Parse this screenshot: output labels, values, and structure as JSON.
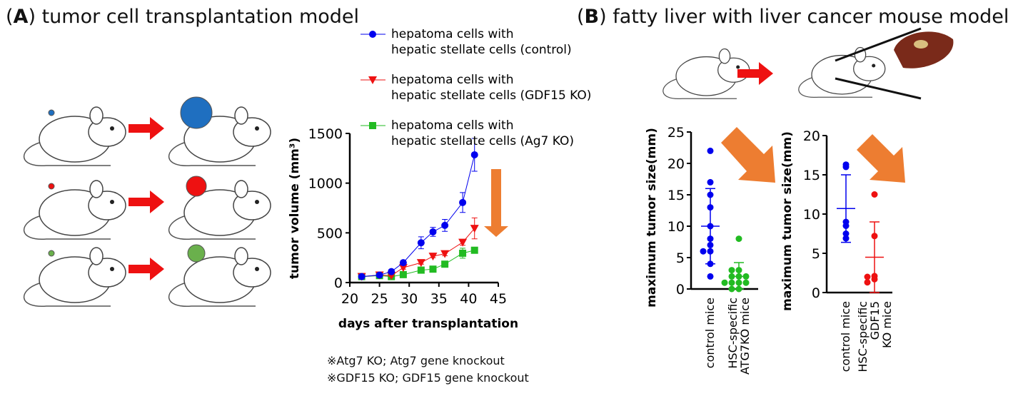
{
  "panel_a": {
    "letter": "A",
    "title": "tumor cell transplantation model",
    "notes": [
      "※Atg7 KO; Atg7 gene knockout",
      "※GDF15 KO; GDF15 gene knockout"
    ],
    "mouse_tumor_colors": [
      "#1f6fc0",
      "#ee1111",
      "#6ab04c"
    ]
  },
  "panel_b": {
    "letter": "B",
    "title": "fatty liver with liver cancer mouse model"
  },
  "colors": {
    "arrow_red": "#ee1111",
    "arrow_orange": "#ed7d31"
  },
  "chart_data": [
    {
      "type": "line",
      "xlabel": "days after transplantation",
      "ylabel": "tumor volume (mm³)",
      "xlim": [
        20,
        45
      ],
      "ylim": [
        0,
        1500
      ],
      "xticks": [
        20,
        25,
        30,
        35,
        40,
        45
      ],
      "yticks": [
        0,
        500,
        1000,
        1500
      ],
      "legend": "top",
      "x": [
        22,
        25,
        27,
        29,
        32,
        34,
        36,
        39,
        41
      ],
      "series": [
        {
          "name": "hepatoma cells with hepatic stellate cells (control)",
          "color": "#0000ee",
          "marker": "circle",
          "values": [
            60,
            75,
            110,
            200,
            400,
            510,
            575,
            805,
            1285
          ],
          "error": [
            5,
            8,
            15,
            20,
            60,
            45,
            60,
            100,
            165
          ]
        },
        {
          "name": "hepatoma cells with hepatic stellate cells (GDF15 KO)",
          "color": "#ee1111",
          "marker": "triangle-down",
          "values": [
            60,
            75,
            70,
            150,
            200,
            265,
            290,
            405,
            545
          ],
          "error": [
            5,
            8,
            8,
            15,
            15,
            15,
            20,
            30,
            105
          ]
        },
        {
          "name": "hepatoma cells with hepatic stellate cells (Ag7 KO)",
          "color": "#22bb22",
          "marker": "square",
          "values": [
            60,
            70,
            60,
            80,
            125,
            135,
            185,
            295,
            325
          ],
          "error": [
            5,
            8,
            8,
            10,
            15,
            15,
            20,
            50,
            20
          ]
        }
      ]
    },
    {
      "type": "scatter",
      "ylabel": "maximum tumor size(mm)",
      "ylim": [
        0,
        25
      ],
      "yticks": [
        0,
        5,
        10,
        15,
        20,
        25
      ],
      "categories": [
        "control mice",
        "HSC-specific ATG7KO mice"
      ],
      "groups": [
        {
          "color": "#0000ee",
          "values": [
            22,
            17,
            15,
            13,
            10,
            8,
            7,
            6,
            6,
            4,
            2
          ],
          "mean": 10,
          "sd_low": 4,
          "sd_high": 16
        },
        {
          "color": "#22bb22",
          "values": [
            8,
            3,
            3,
            2,
            2,
            2,
            1,
            1,
            1,
            1,
            0,
            0
          ],
          "mean": 2,
          "sd_low": 0,
          "sd_high": 4.2
        }
      ]
    },
    {
      "type": "scatter",
      "ylabel": "maximum tumor size(mm)",
      "ylim": [
        0,
        20
      ],
      "yticks": [
        0,
        5,
        10,
        15,
        20
      ],
      "categories": [
        "control mice",
        "HSC-specific GDF15 KO mice"
      ],
      "groups": [
        {
          "color": "#0000ee",
          "values": [
            16,
            16.3,
            8.5,
            9,
            6.9,
            7.5
          ],
          "mean": 10.7,
          "sd_low": 6.4,
          "sd_high": 15
        },
        {
          "color": "#ee1111",
          "values": [
            12.5,
            7.2,
            2.1,
            2,
            1.7,
            1.3
          ],
          "mean": 4.5,
          "sd_low": 0,
          "sd_high": 9
        }
      ]
    }
  ]
}
